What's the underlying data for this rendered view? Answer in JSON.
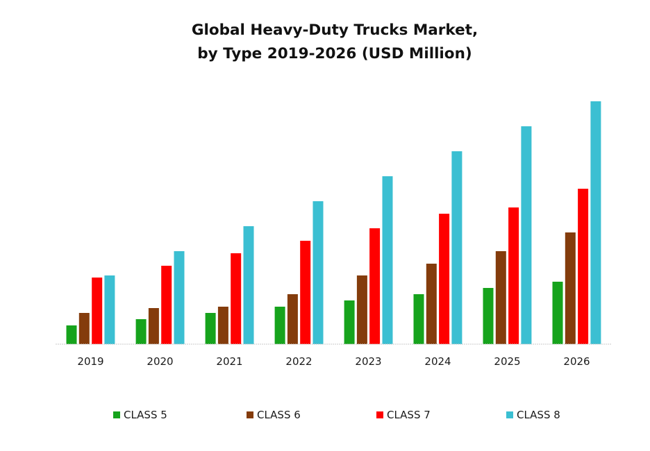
{
  "chart_data": {
    "type": "bar",
    "title": "Global Heavy-Duty Trucks Market,",
    "subtitle": "by Type 2019-2026 (USD Million)",
    "xlabel": "",
    "ylabel": "",
    "categories": [
      "2019",
      "2020",
      "2021",
      "2022",
      "2023",
      "2024",
      "2025",
      "2026"
    ],
    "series": [
      {
        "name": "CLASS 5",
        "color": "#16a31c",
        "values": [
          27,
          36,
          45,
          54,
          63,
          72,
          81,
          90
        ]
      },
      {
        "name": "CLASS 6",
        "color": "#843c0c",
        "values": [
          45,
          52,
          54,
          72,
          99,
          116,
          134,
          161
        ]
      },
      {
        "name": "CLASS 7",
        "color": "#ff0000",
        "values": [
          96,
          113,
          131,
          149,
          167,
          188,
          197,
          224
        ]
      },
      {
        "name": "CLASS 8",
        "color": "#3bbfd2",
        "values": [
          99,
          134,
          170,
          206,
          242,
          278,
          314,
          350
        ]
      }
    ],
    "ylim": [
      0,
      350
    ],
    "value_units": "relative (no y-axis shown)",
    "grid": false,
    "y_axis_visible": false,
    "legend_position": "bottom",
    "axis_color": "#c8c8c8"
  }
}
